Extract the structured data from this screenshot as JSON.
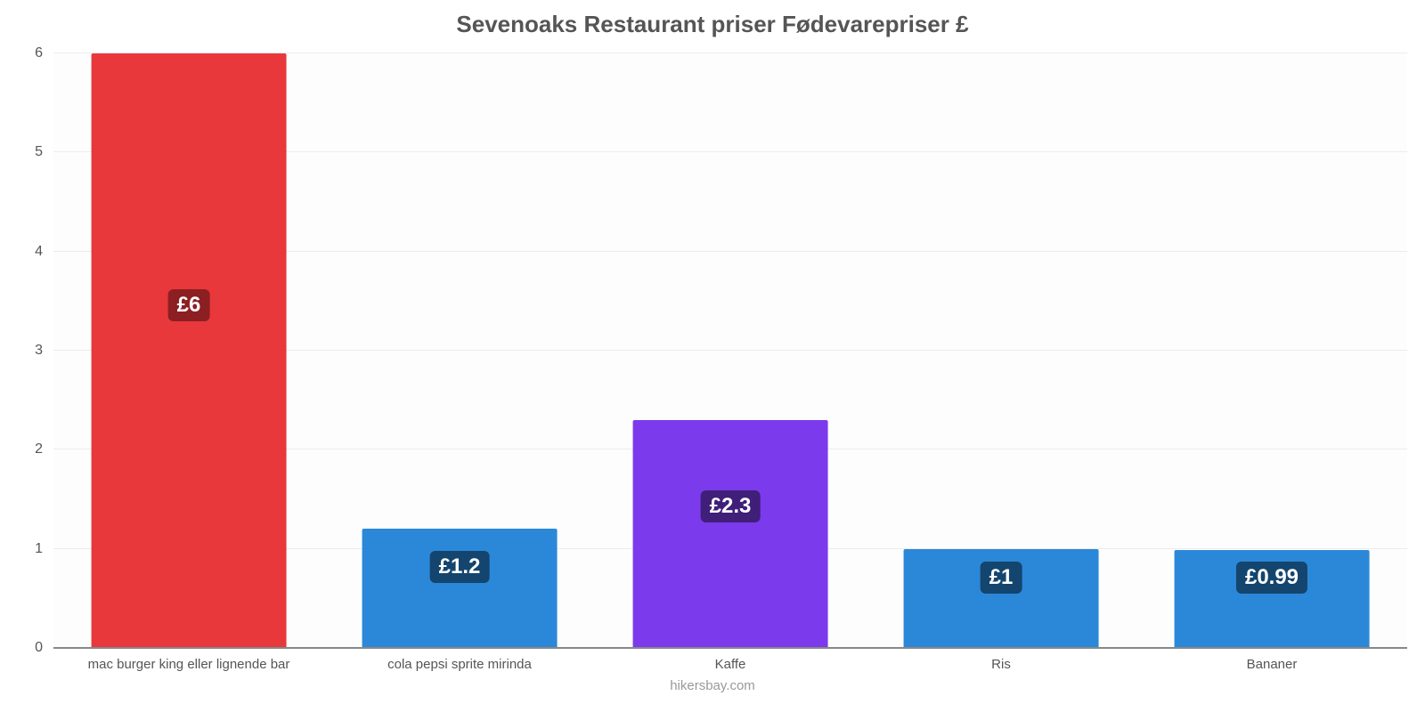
{
  "chart": {
    "type": "bar",
    "title": "Sevenoaks Restaurant priser Fødevarepriser £",
    "title_fontsize": 26,
    "title_color": "#555555",
    "footer": "hikersbay.com",
    "footer_fontsize": 15,
    "footer_color": "#999999",
    "background_color": "#ffffff",
    "plot_background_color": "#fdfdfd",
    "grid_color": "#ececec",
    "axis_color": "#888888",
    "tick_color": "#555555",
    "tick_fontsize": 16,
    "xlabel_fontsize": 15,
    "value_badge_fontsize": 24,
    "value_badge_radius": 6,
    "ylim": [
      0,
      6
    ],
    "ytick_step": 1,
    "yticks": [
      0,
      1,
      2,
      3,
      4,
      5,
      6
    ],
    "bar_width_ratio": 0.72,
    "categories": [
      "mac burger king eller lignende bar",
      "cola pepsi sprite mirinda",
      "Kaffe",
      "Ris",
      "Bananer"
    ],
    "values": [
      6,
      1.2,
      2.3,
      1,
      0.99
    ],
    "value_labels": [
      "£6",
      "£1.2",
      "£2.3",
      "£1",
      "£0.99"
    ],
    "bar_colors": [
      "#e8383b",
      "#2b88d8",
      "#7c3aed",
      "#2b88d8",
      "#2b88d8"
    ],
    "badge_bg_colors": [
      "#8c1f22",
      "#14456e",
      "#3f1f78",
      "#14456e",
      "#14456e"
    ],
    "badge_top_ratio": 0.45
  }
}
